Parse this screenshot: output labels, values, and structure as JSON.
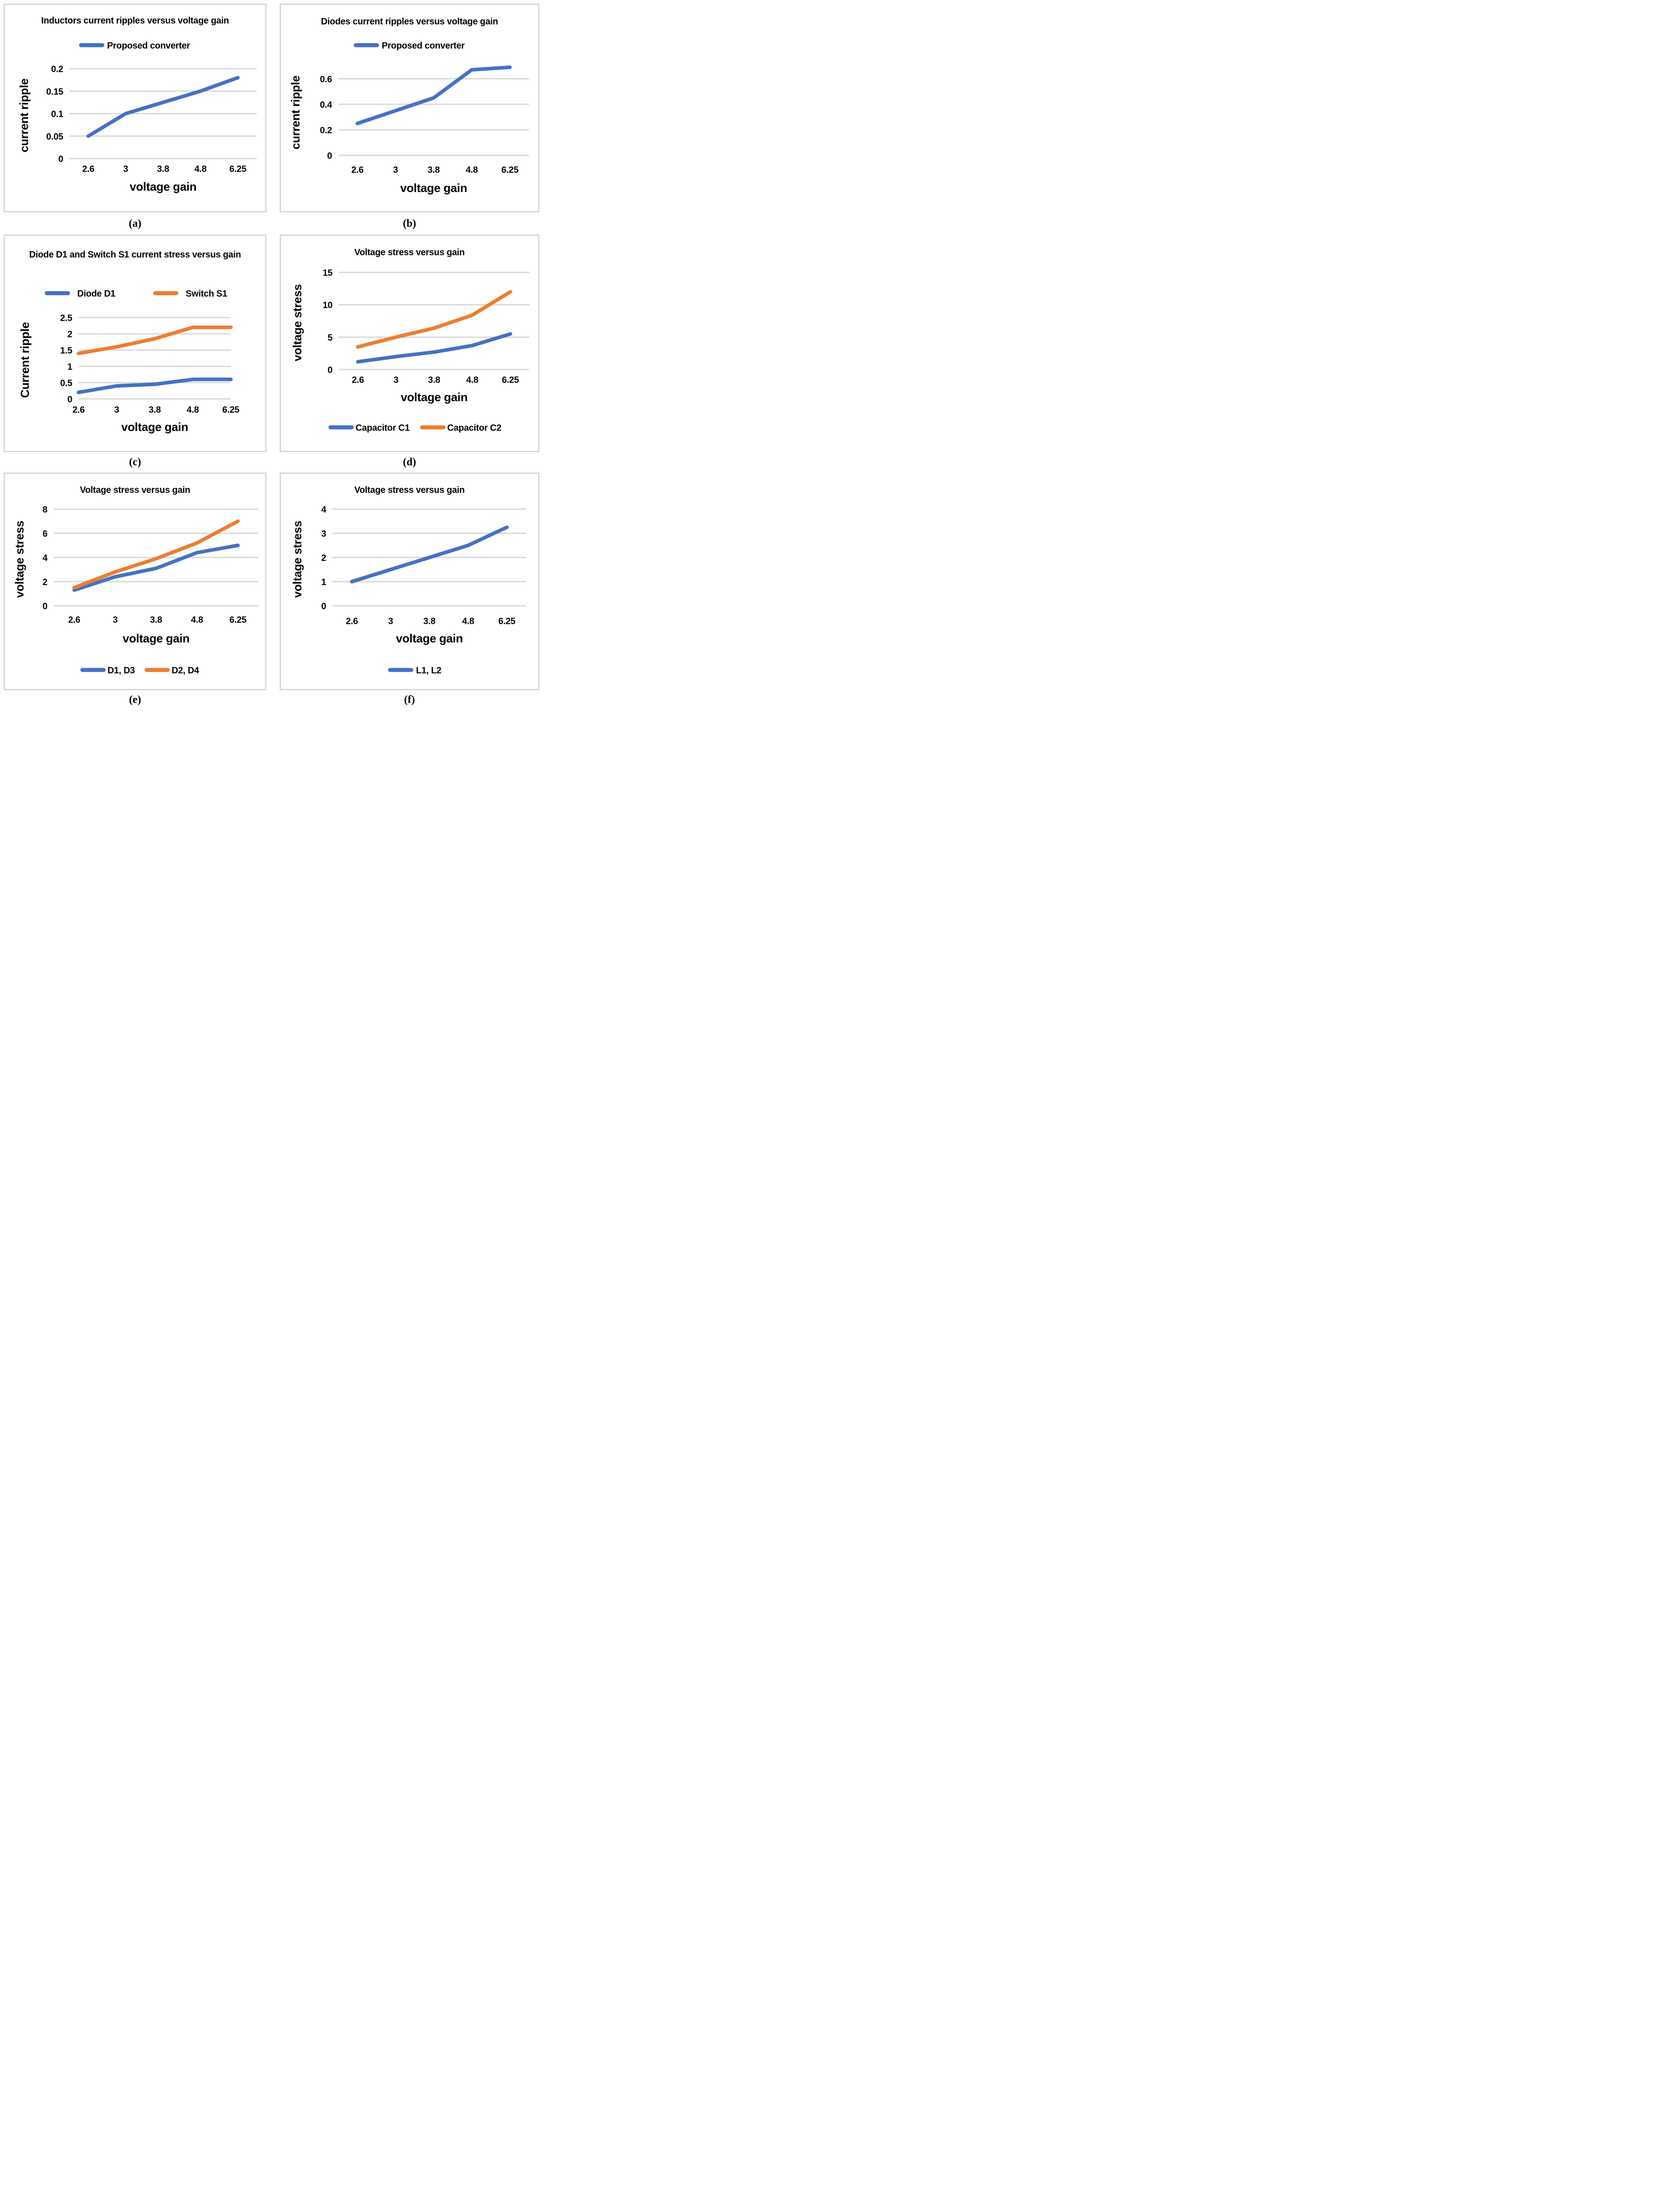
{
  "captions": [
    "(a)",
    "(b)",
    "(c)",
    "(d)",
    "(e)",
    "(f)"
  ],
  "colors": {
    "series_blue": "#4472C4",
    "series_orange": "#ED7D31",
    "gridline": "#D9D9D9",
    "panel_border": "#D9D9D9",
    "text": "#000000"
  },
  "chart_data": [
    {
      "id": "a",
      "type": "line",
      "title": "Inductors current ripples versus voltage gain",
      "xlabel": "voltage gain",
      "ylabel": "current ripple",
      "categories": [
        "2.6",
        "3",
        "3.8",
        "4.8",
        "6.25"
      ],
      "yticks": [
        0,
        0.05,
        0.1,
        0.15,
        0.2
      ],
      "ytick_labels": [
        "0",
        "0.05",
        "0.1",
        "0.15",
        "0.2"
      ],
      "ymax": 0.2,
      "grid": true,
      "legend_position": "top",
      "series": [
        {
          "name": "Proposed converter",
          "color": "#4472C4",
          "values": [
            0.05,
            0.1,
            0.125,
            0.15,
            0.18
          ]
        }
      ]
    },
    {
      "id": "b",
      "type": "line",
      "title": "Diodes current ripples versus voltage gain",
      "xlabel": "voltage gain",
      "ylabel": "current ripple",
      "categories": [
        "2.6",
        "3",
        "3.8",
        "4.8",
        "6.25"
      ],
      "yticks": [
        0,
        0.2,
        0.4,
        0.6
      ],
      "ytick_labels": [
        "0",
        "0.2",
        "0.4",
        "0.6"
      ],
      "ymax": 0.7,
      "grid": true,
      "legend_position": "top",
      "series": [
        {
          "name": "Proposed converter",
          "color": "#4472C4",
          "values": [
            0.25,
            0.35,
            0.45,
            0.67,
            0.69
          ]
        }
      ]
    },
    {
      "id": "c",
      "type": "line",
      "title": "Diode D1 and Switch S1 current stress versus gain",
      "xlabel": "voltage gain",
      "ylabel": "Current ripple",
      "categories": [
        "2.6",
        "3",
        "3.8",
        "4.8",
        "6.25"
      ],
      "yticks": [
        0,
        0.5,
        1,
        1.5,
        2,
        2.5
      ],
      "ytick_labels": [
        "0",
        "0.5",
        "1",
        "1.5",
        "2",
        "2.5"
      ],
      "ymax": 2.5,
      "grid": true,
      "legend_position": "top",
      "series": [
        {
          "name": "Diode D1",
          "color": "#4472C4",
          "values": [
            0.2,
            0.4,
            0.45,
            0.6,
            0.6
          ]
        },
        {
          "name": "Switch S1",
          "color": "#ED7D31",
          "values": [
            1.4,
            1.6,
            1.85,
            2.2,
            2.2
          ]
        }
      ]
    },
    {
      "id": "d",
      "type": "line",
      "title": "Voltage stress versus gain",
      "xlabel": "voltage gain",
      "ylabel": "voltage stress",
      "categories": [
        "2.6",
        "3",
        "3.8",
        "4.8",
        "6.25"
      ],
      "yticks": [
        0,
        5,
        10,
        15
      ],
      "ytick_labels": [
        "0",
        "5",
        "10",
        "15"
      ],
      "ymax": 15,
      "grid": true,
      "legend_position": "bottom",
      "series": [
        {
          "name": "Capacitor C1",
          "color": "#4472C4",
          "values": [
            1.2,
            2.0,
            2.7,
            3.7,
            5.5
          ]
        },
        {
          "name": "Capacitor C2",
          "color": "#ED7D31",
          "values": [
            3.5,
            5.0,
            6.4,
            8.4,
            12.0
          ]
        }
      ]
    },
    {
      "id": "e",
      "type": "line",
      "title": "Voltage stress versus gain",
      "xlabel": "voltage gain",
      "ylabel": "voltage stress",
      "categories": [
        "2.6",
        "3",
        "3.8",
        "4.8",
        "6.25"
      ],
      "yticks": [
        0,
        2,
        4,
        6,
        8
      ],
      "ytick_labels": [
        "0",
        "2",
        "4",
        "6",
        "8"
      ],
      "ymax": 8,
      "grid": true,
      "legend_position": "bottom",
      "series": [
        {
          "name": "D1, D3",
          "color": "#4472C4",
          "values": [
            1.3,
            2.4,
            3.1,
            4.4,
            5.0
          ]
        },
        {
          "name": "D2, D4",
          "color": "#ED7D31",
          "values": [
            1.5,
            2.8,
            3.9,
            5.2,
            7.0
          ]
        }
      ]
    },
    {
      "id": "f",
      "type": "line",
      "title": "Voltage stress versus gain",
      "xlabel": "voltage gain",
      "ylabel": "voltage stress",
      "categories": [
        "2.6",
        "3",
        "3.8",
        "4.8",
        "6.25"
      ],
      "yticks": [
        0,
        1,
        2,
        3,
        4
      ],
      "ytick_labels": [
        "0",
        "1",
        "2",
        "3",
        "4"
      ],
      "ymax": 4,
      "grid": true,
      "legend_position": "bottom",
      "series": [
        {
          "name": "L1, L2",
          "color": "#4472C4",
          "values": [
            1.0,
            1.5,
            2.0,
            2.5,
            3.25
          ]
        }
      ]
    }
  ]
}
